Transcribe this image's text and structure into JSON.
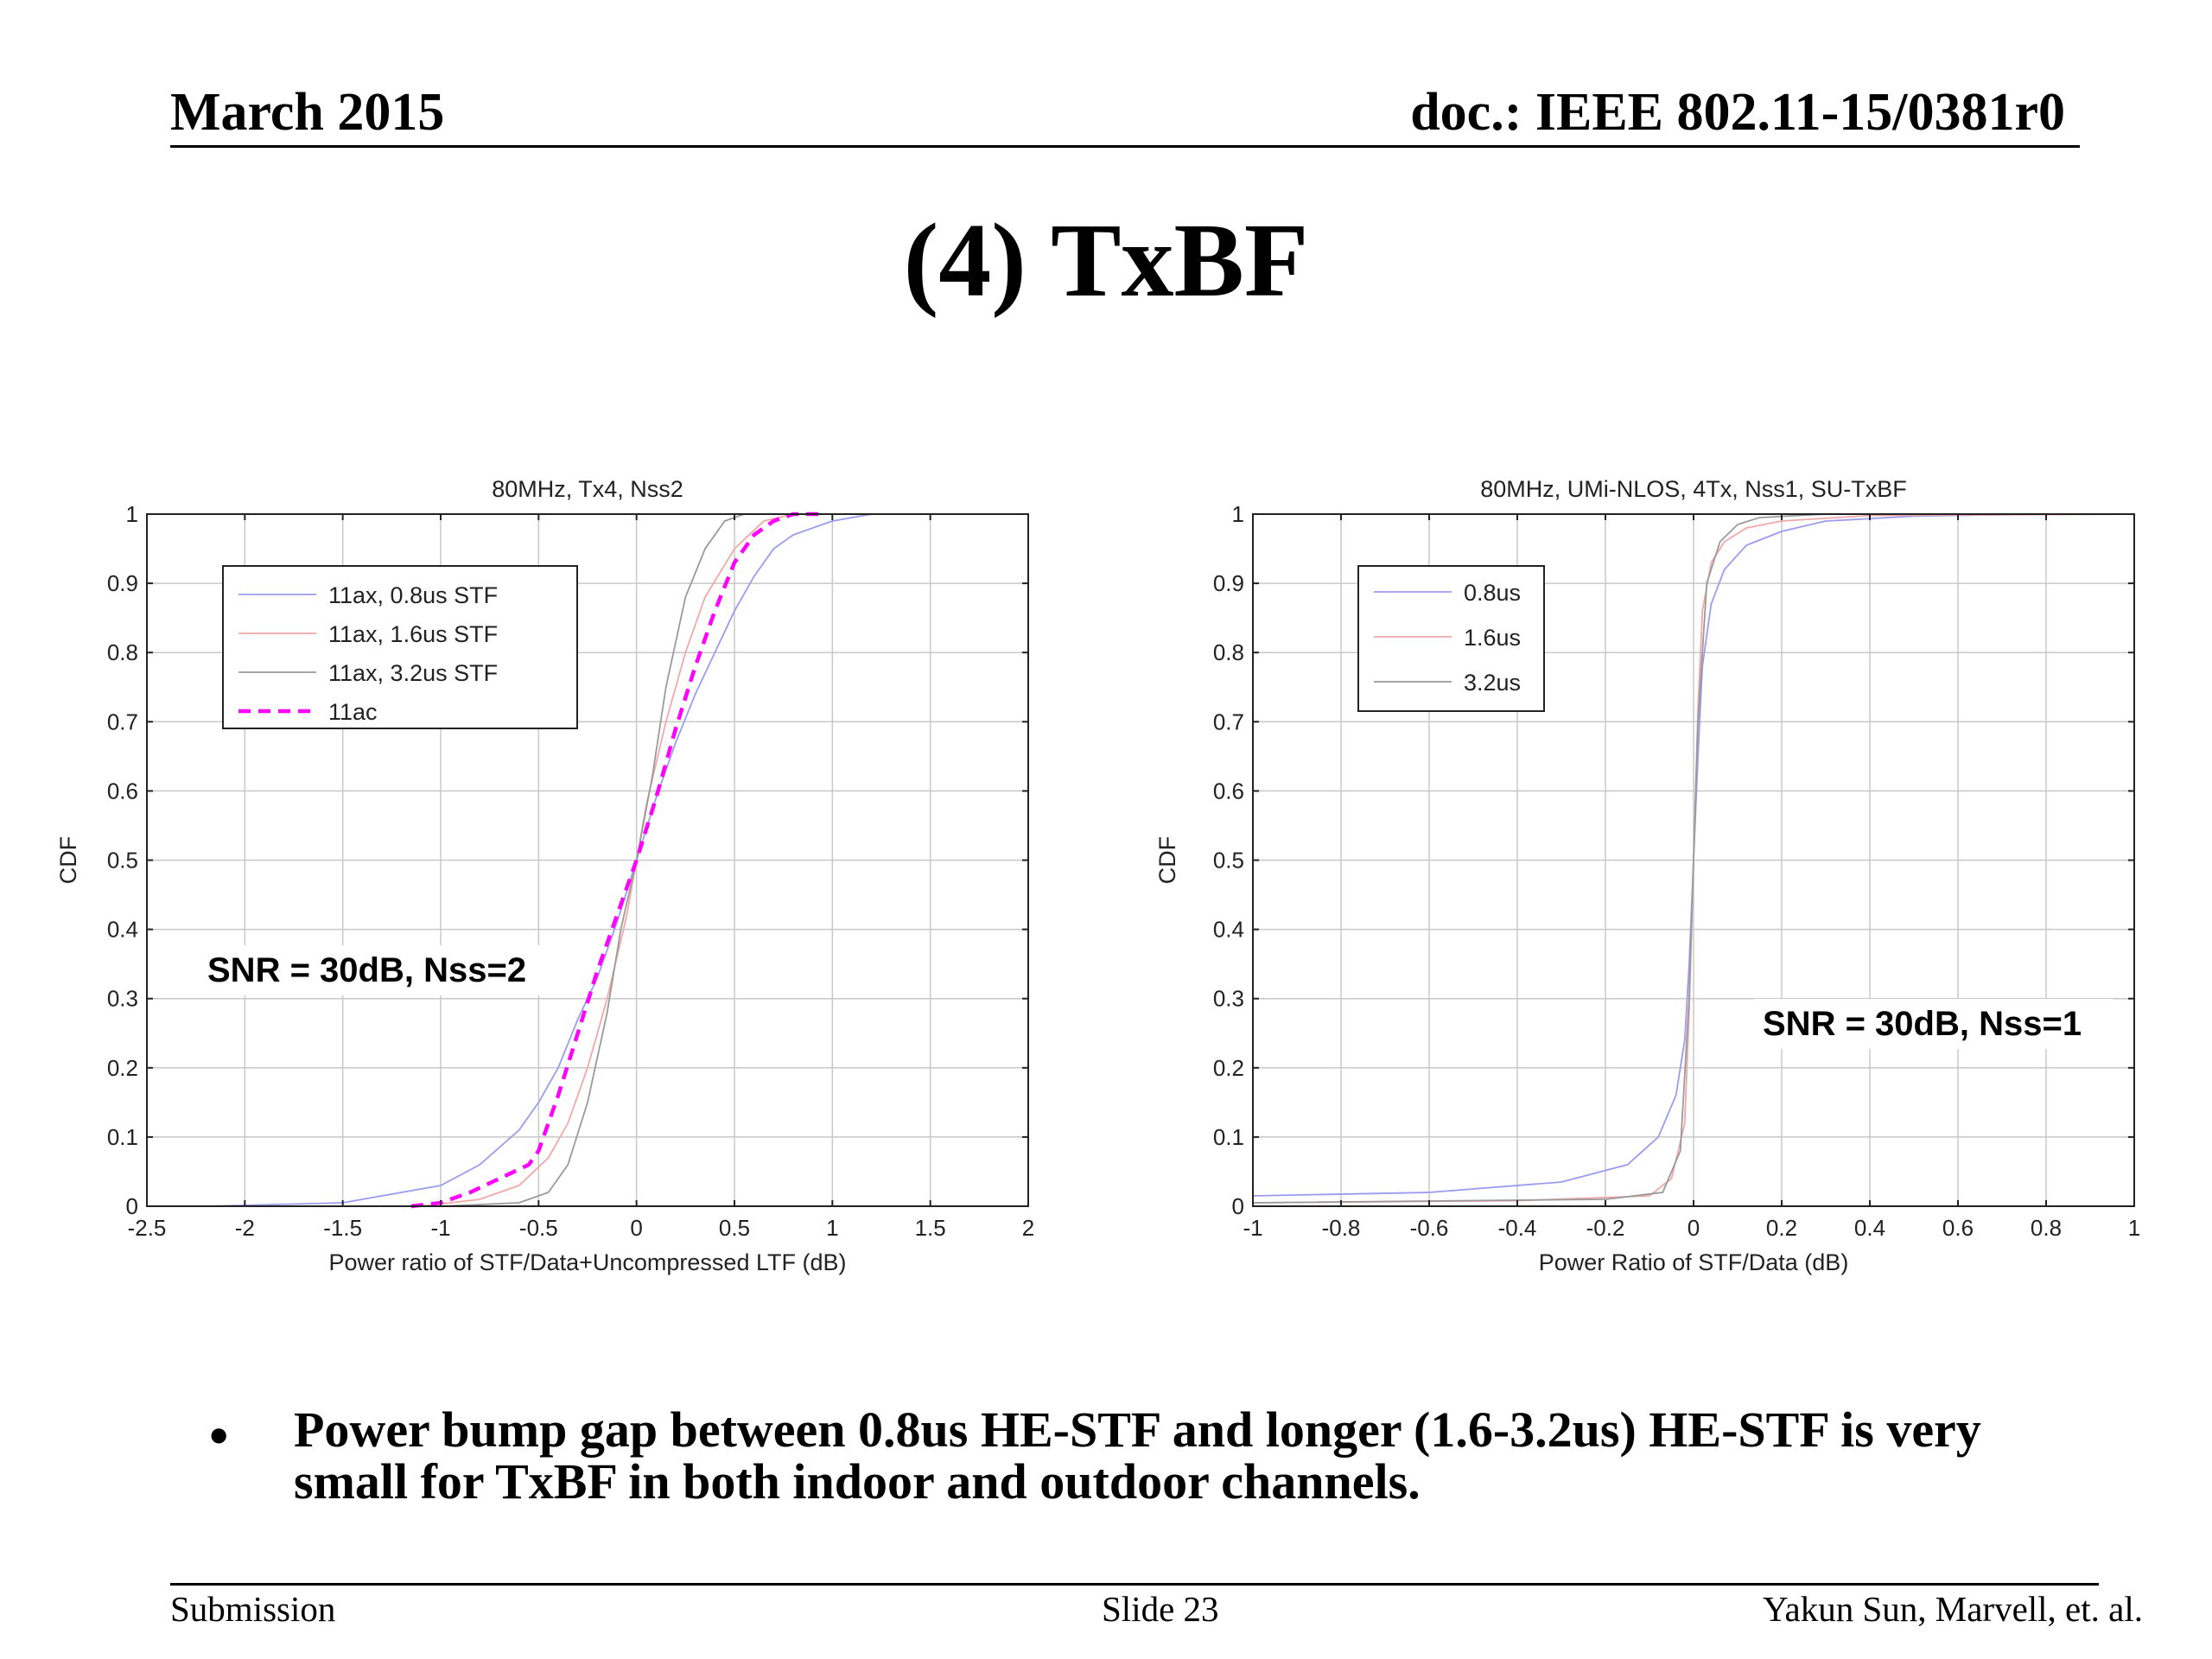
{
  "header": {
    "date": "March 2015",
    "doc_id": "doc.: IEEE 802.11-15/0381r0"
  },
  "title": "(4) TxBF",
  "bullet": "Power bump gap between 0.8us HE-STF and longer (1.6-3.2us) HE-STF is very small for TxBF in both indoor and outdoor channels.",
  "footer": {
    "left": "Submission",
    "center": "Slide 23",
    "right": "Yakun Sun,  Marvell, et. al."
  },
  "colors": {
    "series_blue": "#9b9bf0",
    "series_red": "#f0a8a8",
    "series_gray": "#9a9a9a",
    "series_magenta": "#ff00ff"
  },
  "chart_data": [
    {
      "type": "line",
      "title": "80MHz, Tx4, Nss2",
      "xlabel": "Power ratio of STF/Data+Uncompressed LTF (dB)",
      "ylabel": "CDF",
      "xlim": [
        -2.5,
        2
      ],
      "ylim": [
        0,
        1
      ],
      "xticks": [
        -2.5,
        -2,
        -1.5,
        -1,
        -0.5,
        0,
        0.5,
        1,
        1.5,
        2
      ],
      "xtick_labels": [
        "-2.5",
        "-2",
        "-1.5",
        "-1",
        "-0.5",
        "0",
        "0.5",
        "1",
        "1.5",
        "2"
      ],
      "yticks": [
        0,
        0.1,
        0.2,
        0.3,
        0.4,
        0.5,
        0.6,
        0.7,
        0.8,
        0.9,
        1
      ],
      "ytick_labels": [
        "0",
        "0.1",
        "0.2",
        "0.3",
        "0.4",
        "0.5",
        "0.6",
        "0.7",
        "0.8",
        "0.9",
        "1"
      ],
      "grid": true,
      "legend_position": "top-left",
      "annotation": "SNR = 30dB, Nss=2",
      "series": [
        {
          "name": "11ax, 0.8us STF",
          "color": "#9b9bf0",
          "dash": "solid",
          "x": [
            -2.2,
            -1.5,
            -1.0,
            -0.8,
            -0.6,
            -0.5,
            -0.4,
            -0.3,
            -0.2,
            -0.1,
            0.0,
            0.1,
            0.2,
            0.3,
            0.4,
            0.5,
            0.6,
            0.7,
            0.8,
            1.0,
            1.2,
            1.5
          ],
          "y": [
            0.0,
            0.005,
            0.03,
            0.06,
            0.11,
            0.15,
            0.2,
            0.27,
            0.33,
            0.41,
            0.5,
            0.59,
            0.67,
            0.74,
            0.8,
            0.86,
            0.91,
            0.95,
            0.97,
            0.99,
            1.0,
            1.0
          ]
        },
        {
          "name": "11ax, 1.6us STF",
          "color": "#f0a8a8",
          "dash": "solid",
          "x": [
            -1.1,
            -0.8,
            -0.6,
            -0.45,
            -0.35,
            -0.25,
            -0.15,
            -0.05,
            0.0,
            0.05,
            0.15,
            0.25,
            0.35,
            0.5,
            0.65,
            0.8
          ],
          "y": [
            0.0,
            0.01,
            0.03,
            0.07,
            0.12,
            0.2,
            0.3,
            0.42,
            0.5,
            0.58,
            0.7,
            0.8,
            0.88,
            0.95,
            0.99,
            1.0
          ]
        },
        {
          "name": "11ax, 3.2us STF",
          "color": "#9a9a9a",
          "dash": "solid",
          "x": [
            -1.0,
            -0.6,
            -0.45,
            -0.35,
            -0.25,
            -0.15,
            -0.08,
            0.0,
            0.08,
            0.15,
            0.25,
            0.35,
            0.45,
            0.55
          ],
          "y": [
            0.0,
            0.005,
            0.02,
            0.06,
            0.15,
            0.28,
            0.4,
            0.5,
            0.62,
            0.75,
            0.88,
            0.95,
            0.99,
            1.0
          ]
        },
        {
          "name": "11ac",
          "color": "#ff00ff",
          "dash": "dashed",
          "x": [
            -1.15,
            -1.0,
            -0.85,
            -0.7,
            -0.55,
            -0.5,
            -0.4,
            -0.3,
            -0.2,
            -0.1,
            0.0,
            0.1,
            0.2,
            0.3,
            0.4,
            0.5,
            0.6,
            0.7,
            0.8,
            0.95
          ],
          "y": [
            0.0,
            0.005,
            0.02,
            0.04,
            0.06,
            0.08,
            0.16,
            0.25,
            0.34,
            0.42,
            0.5,
            0.59,
            0.69,
            0.78,
            0.86,
            0.93,
            0.97,
            0.99,
            1.0,
            1.0
          ]
        }
      ]
    },
    {
      "type": "line",
      "title": "80MHz, UMi-NLOS, 4Tx, Nss1, SU-TxBF",
      "xlabel": "Power Ratio of STF/Data (dB)",
      "ylabel": "CDF",
      "xlim": [
        -1,
        1
      ],
      "ylim": [
        0,
        1
      ],
      "xticks": [
        -1,
        -0.8,
        -0.6,
        -0.4,
        -0.2,
        0,
        0.2,
        0.4,
        0.6,
        0.8,
        1
      ],
      "xtick_labels": [
        "-1",
        "-0.8",
        "-0.6",
        "-0.4",
        "-0.2",
        "0",
        "0.2",
        "0.4",
        "0.6",
        "0.8",
        "1"
      ],
      "yticks": [
        0,
        0.1,
        0.2,
        0.3,
        0.4,
        0.5,
        0.6,
        0.7,
        0.8,
        0.9,
        1
      ],
      "ytick_labels": [
        "0",
        "0.1",
        "0.2",
        "0.3",
        "0.4",
        "0.5",
        "0.6",
        "0.7",
        "0.8",
        "0.9",
        "1"
      ],
      "grid": true,
      "legend_position": "top-left",
      "annotation": "SNR = 30dB, Nss=1",
      "series": [
        {
          "name": "0.8us",
          "color": "#9b9bf0",
          "dash": "solid",
          "x": [
            -1.0,
            -0.6,
            -0.3,
            -0.15,
            -0.08,
            -0.04,
            -0.02,
            -0.01,
            0.0,
            0.01,
            0.02,
            0.04,
            0.07,
            0.12,
            0.2,
            0.3,
            0.5,
            0.8,
            1.0
          ],
          "y": [
            0.015,
            0.02,
            0.035,
            0.06,
            0.1,
            0.16,
            0.24,
            0.35,
            0.5,
            0.65,
            0.78,
            0.87,
            0.92,
            0.955,
            0.975,
            0.99,
            0.997,
            1.0,
            1.0
          ]
        },
        {
          "name": "1.6us",
          "color": "#f0a8a8",
          "dash": "solid",
          "x": [
            -1.0,
            -0.4,
            -0.1,
            -0.05,
            -0.02,
            -0.01,
            0.0,
            0.01,
            0.02,
            0.04,
            0.07,
            0.12,
            0.2,
            0.4,
            1.0
          ],
          "y": [
            0.005,
            0.008,
            0.015,
            0.04,
            0.12,
            0.28,
            0.5,
            0.72,
            0.86,
            0.93,
            0.96,
            0.98,
            0.99,
            0.998,
            1.0
          ]
        },
        {
          "name": "3.2us",
          "color": "#9a9a9a",
          "dash": "solid",
          "x": [
            -1.0,
            -0.2,
            -0.07,
            -0.03,
            -0.01,
            0.0,
            0.01,
            0.03,
            0.06,
            0.1,
            0.15,
            0.3,
            1.0
          ],
          "y": [
            0.005,
            0.01,
            0.02,
            0.08,
            0.3,
            0.5,
            0.7,
            0.9,
            0.96,
            0.985,
            0.995,
            1.0,
            1.0
          ]
        }
      ]
    }
  ]
}
